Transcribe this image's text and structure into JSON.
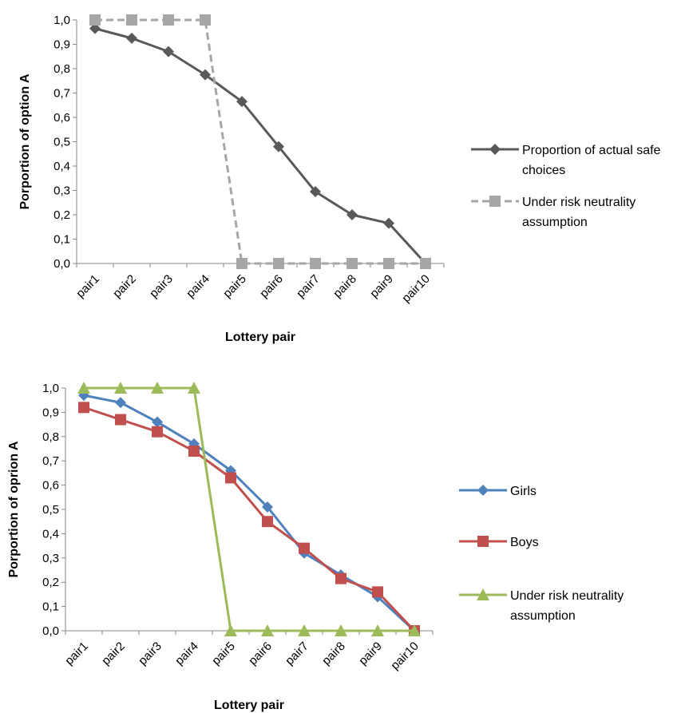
{
  "chart_data": [
    {
      "type": "line",
      "title": "",
      "xlabel": "Lottery pair",
      "ylabel": "Porportion of option A",
      "ylim": [
        0,
        1
      ],
      "yticks": [
        "0,0",
        "0,1",
        "0,2",
        "0,3",
        "0,4",
        "0,5",
        "0,6",
        "0,7",
        "0,8",
        "0,9",
        "1,0"
      ],
      "categories": [
        "pair1",
        "pair2",
        "pair3",
        "pair4",
        "pair5",
        "pair6",
        "pair7",
        "pair8",
        "pair9",
        "pair10"
      ],
      "legend_position": "right",
      "grid": false,
      "series": [
        {
          "name": "Proportion of actual safe choices",
          "values": [
            0.965,
            0.925,
            0.87,
            0.775,
            0.665,
            0.48,
            0.295,
            0.2,
            0.165,
            0.0
          ],
          "color": "#595959",
          "marker": "diamond",
          "dash": "solid",
          "legend_lines": [
            "Proportion of actual safe",
            "choices"
          ]
        },
        {
          "name": "Under risk neutrality assumption",
          "values": [
            1.0,
            1.0,
            1.0,
            1.0,
            0.0,
            0.0,
            0.0,
            0.0,
            0.0,
            0.0
          ],
          "color": "#a6a6a6",
          "marker": "square",
          "dash": "dashed",
          "legend_lines": [
            "Under risk neutrality",
            "assumption"
          ]
        }
      ]
    },
    {
      "type": "line",
      "title": "",
      "xlabel": "Lottery pair",
      "ylabel": "Porportion of oprion A",
      "ylim": [
        0,
        1
      ],
      "yticks": [
        "0,0",
        "0,1",
        "0,2",
        "0,3",
        "0,4",
        "0,5",
        "0,6",
        "0,7",
        "0,8",
        "0,9",
        "1,0"
      ],
      "categories": [
        "pair1",
        "pair2",
        "pair3",
        "pair4",
        "pair5",
        "pair6",
        "pair7",
        "pair8",
        "pair9",
        "pair10"
      ],
      "legend_position": "right",
      "grid": false,
      "series": [
        {
          "name": "Girls",
          "values": [
            0.97,
            0.94,
            0.86,
            0.77,
            0.66,
            0.51,
            0.32,
            0.23,
            0.14,
            0.0
          ],
          "color": "#4f81bd",
          "marker": "diamond",
          "dash": "solid",
          "legend_lines": [
            "Girls"
          ]
        },
        {
          "name": "Boys",
          "values": [
            0.92,
            0.87,
            0.82,
            0.74,
            0.63,
            0.45,
            0.34,
            0.215,
            0.16,
            0.0
          ],
          "color": "#c0504d",
          "marker": "square",
          "dash": "solid",
          "legend_lines": [
            "Boys"
          ]
        },
        {
          "name": "Under risk neutrality assumption",
          "values": [
            1.0,
            1.0,
            1.0,
            1.0,
            0.0,
            0.0,
            0.0,
            0.0,
            0.0,
            0.0
          ],
          "color": "#9bbb59",
          "marker": "triangle",
          "dash": "solid",
          "legend_lines": [
            "Under risk neutrality",
            "assumption"
          ]
        }
      ]
    }
  ]
}
